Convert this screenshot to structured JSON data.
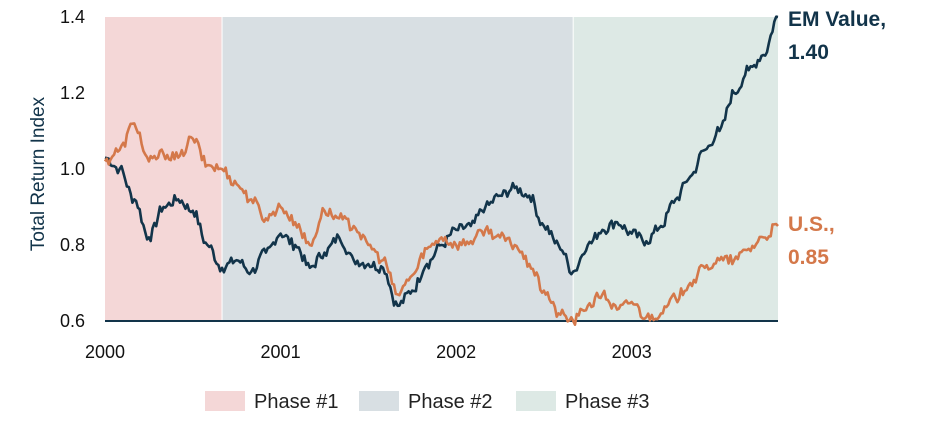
{
  "chart_data": {
    "type": "line",
    "title": "",
    "xlabel": "",
    "ylabel": "Total Return Index",
    "ylim": [
      0.6,
      1.4
    ],
    "y_ticks": [
      "0.6",
      "0.8",
      "1.0",
      "1.2",
      "1.4"
    ],
    "x_ticks": [
      "2000",
      "2001",
      "2002",
      "2003"
    ],
    "x_range": [
      "2000-01",
      "2003-11"
    ],
    "grid": false,
    "legend_position": "bottom",
    "phases": [
      {
        "name": "Phase #1",
        "start": "2000-01",
        "end": "2000-09",
        "color": "#f4d7d7"
      },
      {
        "name": "Phase #2",
        "start": "2000-09",
        "end": "2002-09",
        "color": "#d8dfe3"
      },
      {
        "name": "Phase #3",
        "start": "2002-09",
        "end": "2003-11",
        "color": "#dde9e5"
      }
    ],
    "x": [
      "2000-01",
      "2000-02",
      "2000-03",
      "2000-04",
      "2000-05",
      "2000-06",
      "2000-07",
      "2000-08",
      "2000-09",
      "2000-10",
      "2000-11",
      "2000-12",
      "2001-01",
      "2001-02",
      "2001-03",
      "2001-04",
      "2001-05",
      "2001-06",
      "2001-07",
      "2001-08",
      "2001-09",
      "2001-10",
      "2001-11",
      "2001-12",
      "2002-01",
      "2002-02",
      "2002-03",
      "2002-04",
      "2002-05",
      "2002-06",
      "2002-07",
      "2002-08",
      "2002-09",
      "2002-10",
      "2002-11",
      "2002-12",
      "2003-01",
      "2003-02",
      "2003-03",
      "2003-04",
      "2003-05",
      "2003-06",
      "2003-07",
      "2003-08",
      "2003-09",
      "2003-10",
      "2003-11"
    ],
    "series": [
      {
        "name": "EM Value",
        "color": "#12344a",
        "end_label": [
          "EM Value,",
          "1.40"
        ],
        "values": [
          1.03,
          1.0,
          0.92,
          0.82,
          0.9,
          0.92,
          0.89,
          0.8,
          0.74,
          0.76,
          0.73,
          0.78,
          0.83,
          0.8,
          0.74,
          0.78,
          0.82,
          0.76,
          0.75,
          0.74,
          0.64,
          0.68,
          0.75,
          0.8,
          0.84,
          0.85,
          0.9,
          0.93,
          0.95,
          0.93,
          0.85,
          0.8,
          0.73,
          0.8,
          0.84,
          0.86,
          0.83,
          0.81,
          0.85,
          0.92,
          0.98,
          1.05,
          1.1,
          1.2,
          1.26,
          1.3,
          1.4
        ]
      },
      {
        "name": "U.S.",
        "color": "#d4784a",
        "end_label": [
          "U.S.,",
          "0.85"
        ],
        "values": [
          1.02,
          1.05,
          1.12,
          1.02,
          1.04,
          1.03,
          1.08,
          1.01,
          1.0,
          0.96,
          0.92,
          0.87,
          0.9,
          0.86,
          0.8,
          0.89,
          0.87,
          0.85,
          0.8,
          0.76,
          0.67,
          0.72,
          0.79,
          0.82,
          0.8,
          0.81,
          0.84,
          0.82,
          0.8,
          0.75,
          0.68,
          0.62,
          0.6,
          0.64,
          0.67,
          0.63,
          0.65,
          0.61,
          0.62,
          0.66,
          0.7,
          0.74,
          0.76,
          0.76,
          0.79,
          0.82,
          0.85
        ]
      }
    ]
  }
}
